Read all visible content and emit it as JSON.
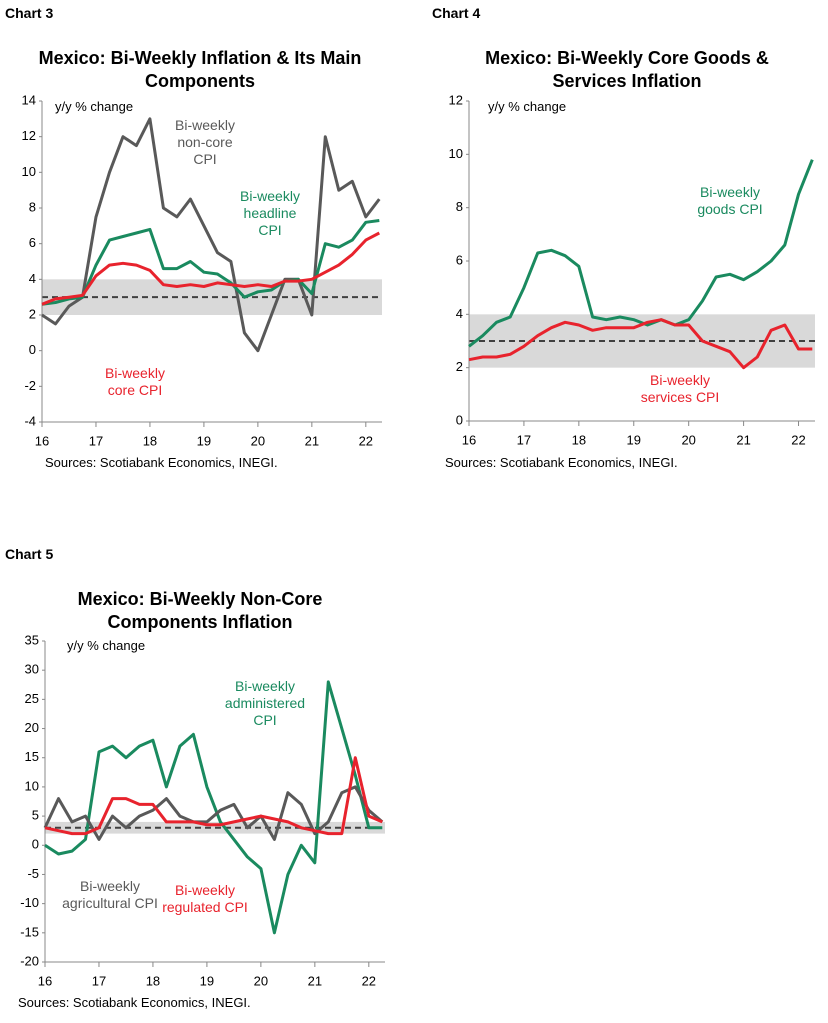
{
  "chart_data": [
    {
      "type": "line",
      "chart_label": "Chart 3",
      "title": "Mexico: Bi-Weekly Inflation & Its Main Components",
      "y_label": "y/y % change",
      "source": "Sources: Scotiabank Economics, INEGI.",
      "x": [
        16,
        16.25,
        16.5,
        16.75,
        17,
        17.25,
        17.5,
        17.75,
        18,
        18.25,
        18.5,
        18.75,
        19,
        19.25,
        19.5,
        19.75,
        20,
        20.25,
        20.5,
        20.75,
        21,
        21.25,
        21.5,
        21.75,
        22,
        22.25
      ],
      "series": [
        {
          "name": "Bi-weekly non-core CPI",
          "color": "#595959",
          "values": [
            2,
            1.5,
            2.5,
            3,
            7.5,
            10,
            12,
            11.5,
            13,
            8,
            7.5,
            8.5,
            7,
            5.5,
            5,
            1,
            0,
            2,
            4,
            4,
            2,
            12,
            9,
            9.5,
            7.5,
            8.5
          ]
        },
        {
          "name": "Bi-weekly headline CPI",
          "color": "#1a8a5f",
          "values": [
            2.6,
            2.7,
            2.9,
            3.0,
            4.8,
            6.2,
            6.4,
            6.6,
            6.8,
            4.6,
            4.6,
            5.0,
            4.4,
            4.3,
            3.8,
            3.0,
            3.3,
            3.4,
            3.9,
            4.0,
            3.2,
            6.0,
            5.8,
            6.2,
            7.2,
            7.3
          ]
        },
        {
          "name": "Bi-weekly core CPI",
          "color": "#e8232d",
          "values": [
            2.6,
            2.9,
            3.0,
            3.1,
            4.2,
            4.8,
            4.9,
            4.8,
            4.5,
            3.7,
            3.6,
            3.7,
            3.6,
            3.8,
            3.7,
            3.6,
            3.7,
            3.6,
            3.9,
            3.9,
            4.0,
            4.4,
            4.8,
            5.4,
            6.2,
            6.6
          ]
        }
      ],
      "target_band": [
        2,
        4
      ],
      "target": 3,
      "xlim": [
        16,
        22.3
      ],
      "xticks": [
        16,
        17,
        18,
        19,
        20,
        21,
        22
      ],
      "ylim": [
        -4,
        14
      ],
      "yticks": [
        -4,
        -2,
        0,
        2,
        4,
        6,
        8,
        10,
        12,
        14
      ]
    },
    {
      "type": "line",
      "chart_label": "Chart 4",
      "title": "Mexico: Bi-Weekly Core Goods & Services Inflation",
      "y_label": "y/y % change",
      "source": "Sources: Scotiabank Economics, INEGI.",
      "x": [
        16,
        16.25,
        16.5,
        16.75,
        17,
        17.25,
        17.5,
        17.75,
        18,
        18.25,
        18.5,
        18.75,
        19,
        19.25,
        19.5,
        19.75,
        20,
        20.25,
        20.5,
        20.75,
        21,
        21.25,
        21.5,
        21.75,
        22,
        22.25
      ],
      "series": [
        {
          "name": "Bi-weekly goods CPI",
          "color": "#1a8a5f",
          "values": [
            2.8,
            3.2,
            3.7,
            3.9,
            5.0,
            6.3,
            6.4,
            6.2,
            5.8,
            3.9,
            3.8,
            3.9,
            3.8,
            3.6,
            3.8,
            3.6,
            3.8,
            4.5,
            5.4,
            5.5,
            5.3,
            5.6,
            6.0,
            6.6,
            8.5,
            9.8
          ]
        },
        {
          "name": "Bi-weekly services CPI",
          "color": "#e8232d",
          "values": [
            2.3,
            2.4,
            2.4,
            2.5,
            2.8,
            3.2,
            3.5,
            3.7,
            3.6,
            3.4,
            3.5,
            3.5,
            3.5,
            3.7,
            3.8,
            3.6,
            3.6,
            3.0,
            2.8,
            2.6,
            2.0,
            2.4,
            3.4,
            3.6,
            2.7,
            2.7
          ]
        }
      ],
      "target_band": [
        2,
        4
      ],
      "target": 3,
      "xlim": [
        16,
        22.3
      ],
      "xticks": [
        16,
        17,
        18,
        19,
        20,
        21,
        22
      ],
      "ylim": [
        0,
        12
      ],
      "yticks": [
        0,
        2,
        4,
        6,
        8,
        10,
        12
      ]
    },
    {
      "type": "line",
      "chart_label": "Chart 5",
      "title": "Mexico: Bi-Weekly Non-Core Components Inflation",
      "y_label": "y/y % change",
      "source": "Sources: Scotiabank Economics, INEGI.",
      "x": [
        16,
        16.25,
        16.5,
        16.75,
        17,
        17.25,
        17.5,
        17.75,
        18,
        18.25,
        18.5,
        18.75,
        19,
        19.25,
        19.5,
        19.75,
        20,
        20.25,
        20.5,
        20.75,
        21,
        21.25,
        21.5,
        21.75,
        22,
        22.25
      ],
      "series": [
        {
          "name": "Bi-weekly administered CPI",
          "color": "#1a8a5f",
          "values": [
            0,
            -1.5,
            -1,
            1,
            16,
            17,
            15,
            17,
            18,
            10,
            17,
            19,
            10,
            4,
            1,
            -2,
            -4,
            -15,
            -5,
            0,
            -3,
            28,
            20,
            12,
            3,
            3
          ]
        },
        {
          "name": "Bi-weekly agricultural CPI",
          "color": "#595959",
          "values": [
            3,
            8,
            4,
            5,
            1,
            5,
            3,
            5,
            6,
            8,
            5,
            4,
            4,
            6,
            7,
            3,
            5,
            1,
            9,
            7,
            2,
            4,
            9,
            10,
            6,
            4
          ]
        },
        {
          "name": "Bi-weekly regulated CPI",
          "color": "#e8232d",
          "values": [
            3,
            2.5,
            2,
            2,
            3,
            8,
            8,
            7,
            7,
            4,
            4,
            4,
            3.5,
            3.5,
            4,
            4.5,
            5,
            4.5,
            4,
            3,
            2.5,
            2,
            2,
            15,
            5,
            4
          ]
        }
      ],
      "target_band": [
        2,
        4
      ],
      "target": 3,
      "xlim": [
        16,
        22.3
      ],
      "xticks": [
        16,
        17,
        18,
        19,
        20,
        21,
        22
      ],
      "ylim": [
        -20,
        35
      ],
      "yticks": [
        -20,
        -15,
        -10,
        -5,
        0,
        5,
        10,
        15,
        20,
        25,
        30,
        35
      ]
    }
  ]
}
